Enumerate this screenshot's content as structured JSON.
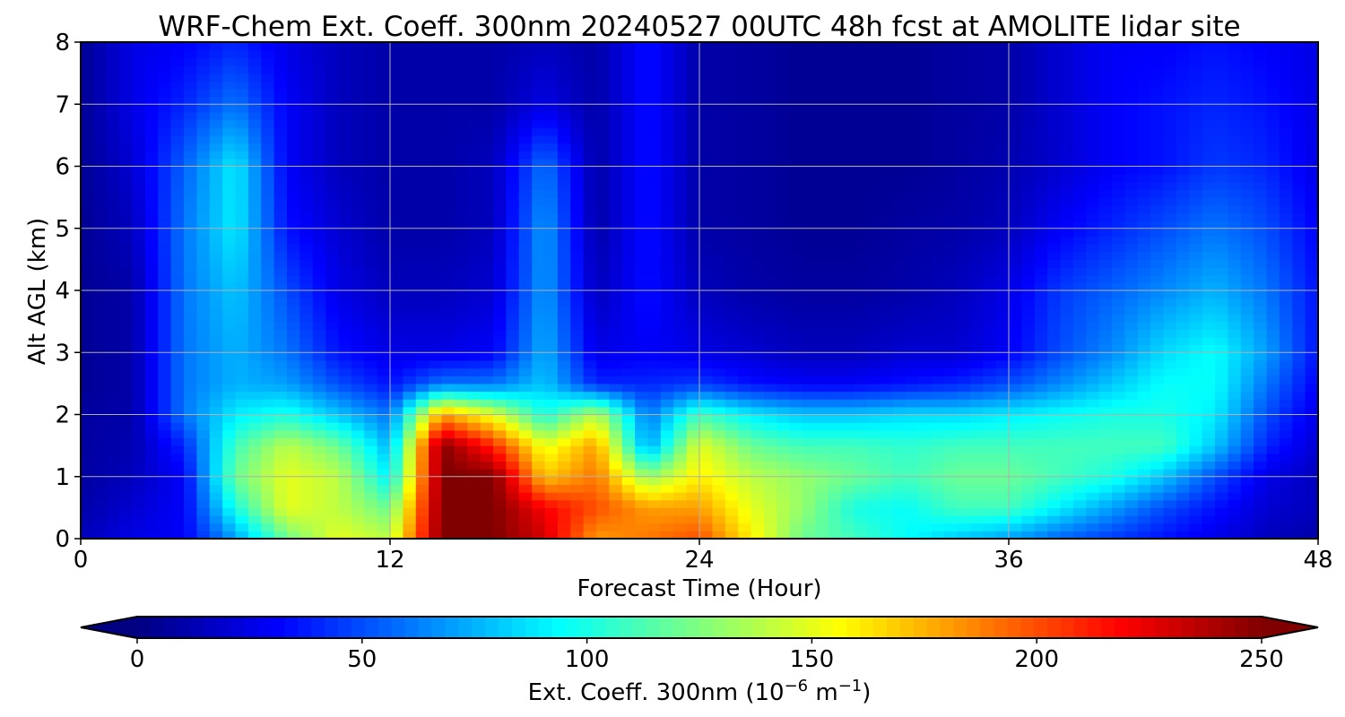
{
  "chart_data": {
    "type": "heatmap",
    "title": "WRF-Chem Ext. Coeff. 300nm  20240527 00UTC 48h fcst at AMOLITE lidar site",
    "xlabel": "Forecast Time (Hour)",
    "ylabel": "Alt AGL (km)",
    "xlim": [
      0,
      48
    ],
    "ylim": [
      0,
      8
    ],
    "xticks": [
      0,
      12,
      24,
      36,
      48
    ],
    "yticks": [
      0,
      1,
      2,
      3,
      4,
      5,
      6,
      7,
      8
    ],
    "grid": true,
    "colormap": "jet",
    "colorbar": {
      "label_text": "Ext. Coeff. 300nm  (10",
      "label_exp1": "−6",
      "label_unit": " m",
      "label_exp2": "−1",
      "label_close": ")",
      "ticks": [
        0,
        50,
        100,
        150,
        200,
        250
      ],
      "range": [
        0,
        250
      ],
      "extend": "both",
      "orientation": "horizontal"
    },
    "x": [
      0,
      2,
      4,
      6,
      8,
      10,
      12,
      14,
      16,
      18,
      20,
      22,
      24,
      26,
      28,
      30,
      32,
      34,
      36,
      38,
      40,
      42,
      44,
      46,
      48
    ],
    "y": [
      0,
      0.5,
      1,
      1.5,
      2,
      2.5,
      3,
      4,
      5,
      6,
      7,
      8
    ],
    "z": [
      [
        15,
        25,
        30,
        70,
        120,
        150,
        140,
        250,
        250,
        230,
        180,
        190,
        200,
        160,
        120,
        110,
        95,
        80,
        70,
        55,
        45,
        35,
        25,
        15,
        10
      ],
      [
        10,
        20,
        30,
        100,
        150,
        140,
        120,
        250,
        250,
        220,
        200,
        180,
        180,
        150,
        130,
        100,
        95,
        110,
        110,
        90,
        70,
        50,
        35,
        20,
        15
      ],
      [
        8,
        15,
        30,
        120,
        150,
        140,
        90,
        250,
        250,
        170,
        190,
        130,
        160,
        140,
        130,
        120,
        110,
        120,
        120,
        110,
        100,
        80,
        50,
        25,
        15
      ],
      [
        8,
        12,
        40,
        110,
        140,
        120,
        75,
        250,
        210,
        150,
        180,
        70,
        150,
        120,
        110,
        110,
        105,
        110,
        110,
        110,
        110,
        110,
        80,
        40,
        20
      ],
      [
        8,
        10,
        60,
        90,
        100,
        80,
        60,
        180,
        150,
        100,
        140,
        60,
        110,
        90,
        80,
        80,
        85,
        85,
        90,
        95,
        100,
        100,
        90,
        50,
        25
      ],
      [
        5,
        10,
        60,
        75,
        70,
        50,
        35,
        60,
        60,
        80,
        40,
        40,
        45,
        35,
        30,
        30,
        35,
        40,
        50,
        65,
        80,
        95,
        95,
        60,
        30
      ],
      [
        5,
        10,
        60,
        75,
        60,
        35,
        25,
        25,
        30,
        75,
        25,
        30,
        25,
        20,
        15,
        15,
        20,
        20,
        30,
        50,
        65,
        85,
        95,
        70,
        35
      ],
      [
        5,
        10,
        60,
        80,
        50,
        25,
        15,
        15,
        20,
        70,
        15,
        35,
        15,
        10,
        8,
        8,
        10,
        15,
        25,
        45,
        55,
        65,
        75,
        60,
        35
      ],
      [
        5,
        15,
        60,
        90,
        35,
        20,
        10,
        10,
        15,
        70,
        10,
        35,
        10,
        8,
        5,
        5,
        8,
        10,
        15,
        30,
        40,
        50,
        60,
        50,
        30
      ],
      [
        5,
        20,
        55,
        90,
        30,
        15,
        10,
        10,
        15,
        60,
        10,
        35,
        10,
        8,
        5,
        5,
        5,
        8,
        12,
        20,
        30,
        35,
        45,
        40,
        25
      ],
      [
        5,
        25,
        40,
        60,
        30,
        15,
        10,
        10,
        10,
        25,
        10,
        35,
        10,
        8,
        5,
        5,
        5,
        8,
        10,
        20,
        30,
        35,
        40,
        35,
        25
      ],
      [
        5,
        25,
        30,
        40,
        25,
        15,
        10,
        10,
        10,
        15,
        10,
        35,
        10,
        8,
        5,
        5,
        5,
        8,
        10,
        20,
        30,
        30,
        35,
        30,
        25
      ]
    ]
  }
}
